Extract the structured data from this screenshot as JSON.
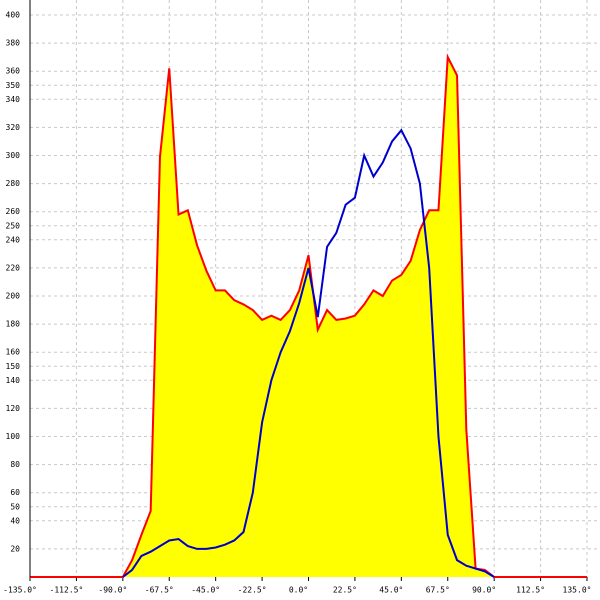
{
  "chart_data": {
    "type": "line",
    "x": [
      -135,
      -130.5,
      -126,
      -121.5,
      -117,
      -112.5,
      -108,
      -103.5,
      -99,
      -94.5,
      -90,
      -85.5,
      -81,
      -76.5,
      -72,
      -67.5,
      -63,
      -58.5,
      -54,
      -49.5,
      -45,
      -40.5,
      -36,
      -31.5,
      -27,
      -22.5,
      -18,
      -13.5,
      -9,
      -4.5,
      0,
      4.5,
      9,
      13.5,
      18,
      22.5,
      27,
      31.5,
      36,
      40.5,
      45,
      49.5,
      54,
      58.5,
      63,
      67.5,
      72,
      76.5,
      81,
      85.5,
      90,
      94.5,
      99,
      103.5,
      108,
      112.5,
      117,
      121.5,
      126,
      130.5,
      135
    ],
    "series": [
      {
        "color": "#ff0000",
        "fill": "#ffff00",
        "values": [
          0,
          0,
          0,
          0,
          0,
          0,
          0,
          0,
          0,
          0,
          0,
          12,
          30,
          47,
          299,
          362,
          258,
          261,
          236,
          218,
          204,
          204,
          197,
          194,
          190,
          183,
          186,
          183,
          190,
          204,
          229,
          176,
          190,
          183,
          184,
          186,
          194,
          204,
          200,
          211,
          215,
          225,
          247,
          261,
          261,
          370,
          357,
          105,
          6,
          5,
          0,
          0,
          0,
          0,
          0,
          0,
          0,
          0,
          0,
          0,
          0
        ]
      },
      {
        "color": "#0000cc",
        "values": [
          null,
          null,
          null,
          null,
          null,
          null,
          null,
          null,
          null,
          null,
          0,
          5,
          15,
          18,
          22,
          26,
          27,
          22,
          20,
          20,
          21,
          23,
          26,
          32,
          60,
          110,
          140,
          160,
          175,
          195,
          220,
          185,
          235,
          245,
          265,
          270,
          300,
          285,
          295,
          310,
          318,
          305,
          280,
          220,
          100,
          30,
          12,
          8,
          6,
          4,
          0,
          null,
          null,
          null,
          null,
          null,
          null,
          null,
          null,
          null,
          null
        ]
      }
    ],
    "xlim": [
      -135,
      135
    ],
    "xticks": [
      {
        "value": -135,
        "label": "-135.0°"
      },
      {
        "value": -112.5,
        "label": "-112.5°"
      },
      {
        "value": -90,
        "label": "-90.0°"
      },
      {
        "value": -67.5,
        "label": "-67.5°"
      },
      {
        "value": -45,
        "label": "-45.0°"
      },
      {
        "value": -22.5,
        "label": "-22.5°"
      },
      {
        "value": 0,
        "label": "0.0°"
      },
      {
        "value": 22.5,
        "label": "22.5°"
      },
      {
        "value": 45,
        "label": "45.0°"
      },
      {
        "value": 67.5,
        "label": "67.5°"
      },
      {
        "value": 90,
        "label": "90.0°"
      },
      {
        "value": 112.5,
        "label": "112.5°"
      },
      {
        "value": 135,
        "label": "135.0°"
      }
    ],
    "ylim": [
      0,
      400
    ],
    "yticks": [
      20,
      40,
      50,
      60,
      80,
      100,
      120,
      140,
      150,
      160,
      180,
      200,
      220,
      240,
      250,
      260,
      280,
      300,
      320,
      340,
      350,
      360,
      380,
      400
    ],
    "grid": true
  }
}
